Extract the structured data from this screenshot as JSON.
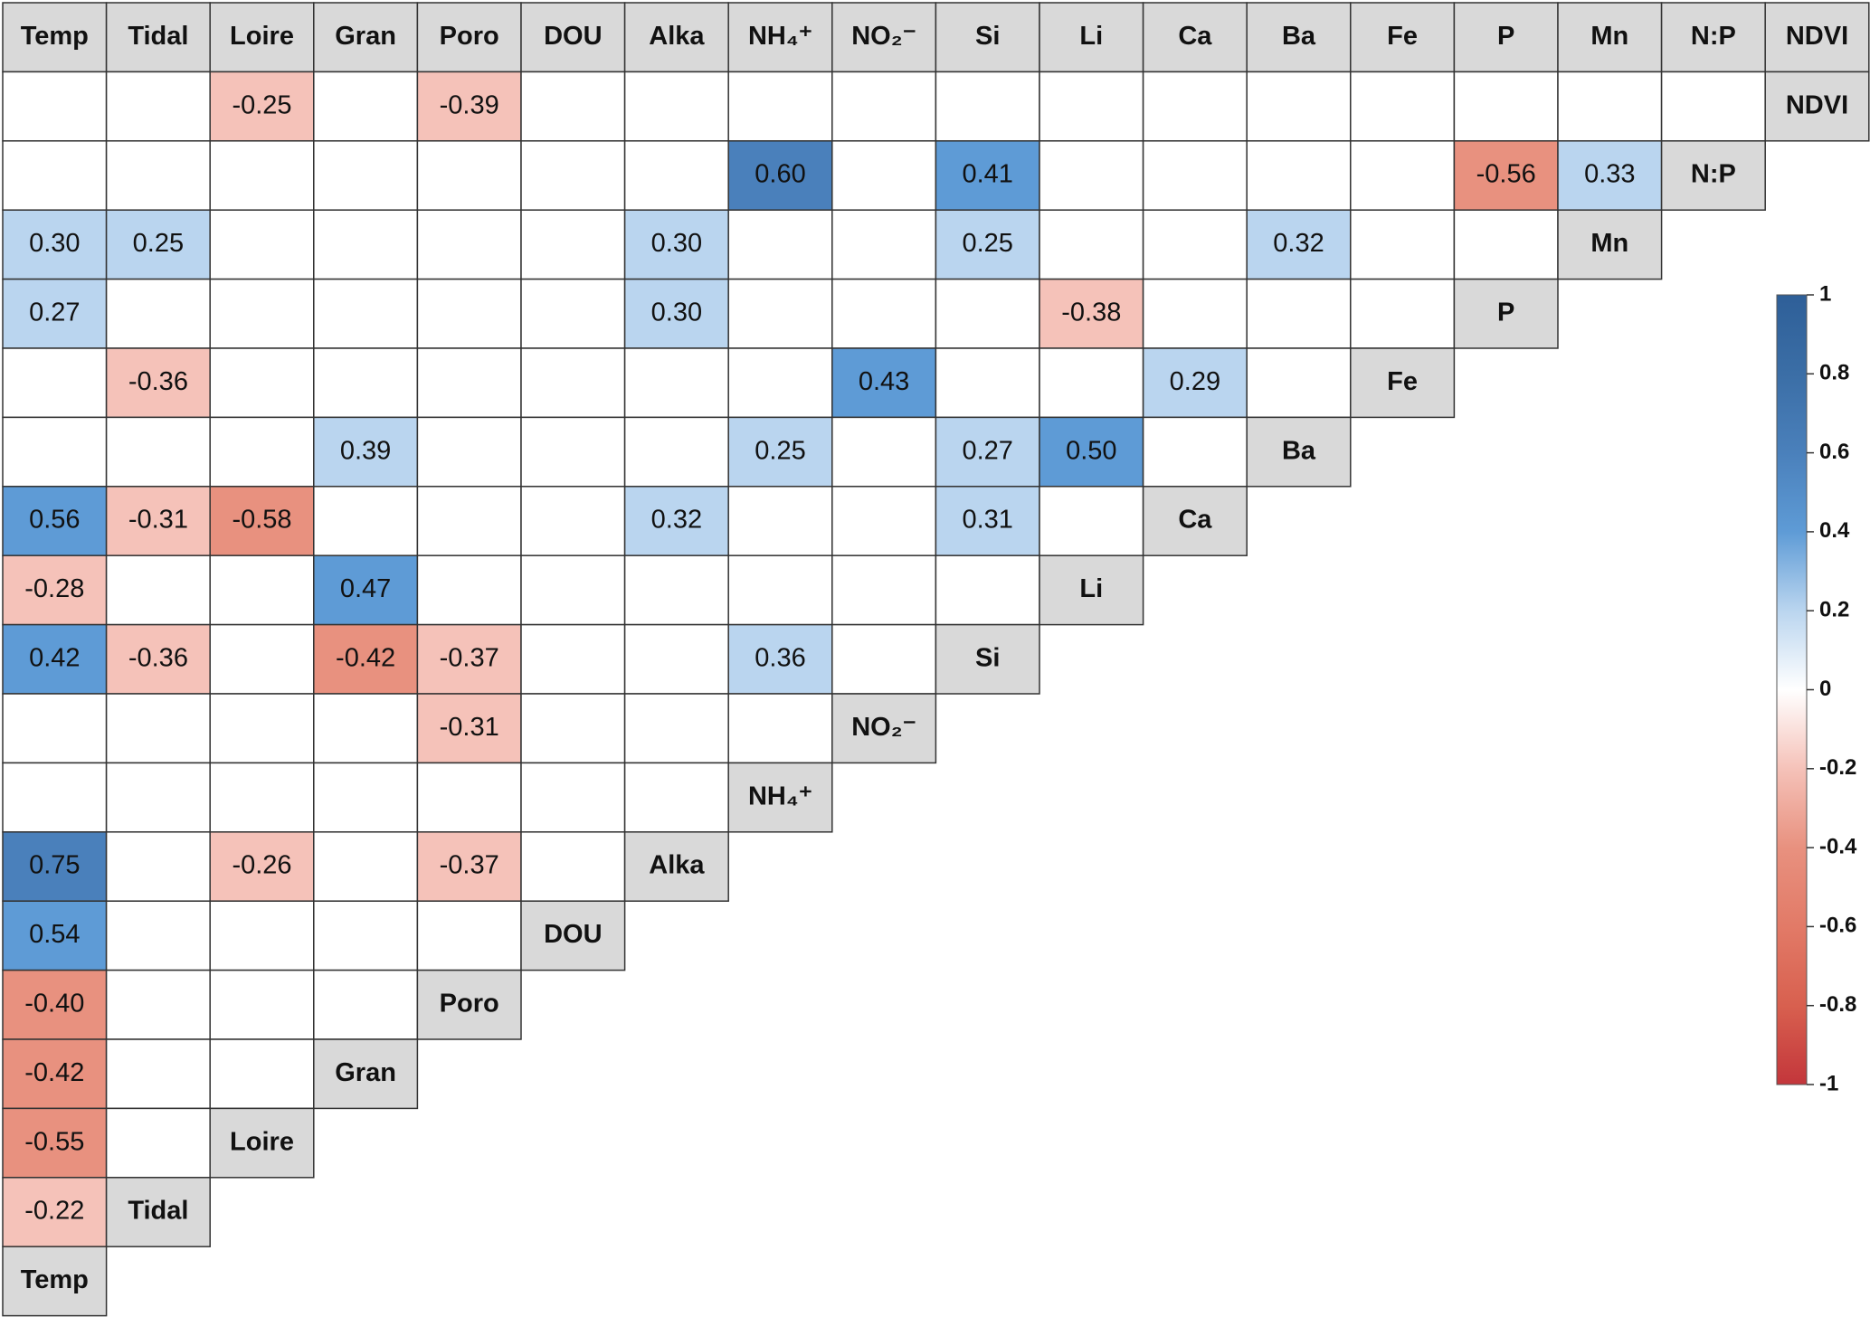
{
  "chart_data": {
    "type": "heatmap",
    "columns": [
      "Temp",
      "Tidal",
      "Loire",
      "Gran",
      "Poro",
      "DOU",
      "Alka",
      "NH₄⁺",
      "NO₂⁻",
      "Si",
      "Li",
      "Ca",
      "Ba",
      "Fe",
      "P",
      "Mn",
      "N:P",
      "NDVI"
    ],
    "rows": [
      "NDVI",
      "N:P",
      "Mn",
      "P",
      "Fe",
      "Ba",
      "Ca",
      "Li",
      "Si",
      "NO₂⁻",
      "NH₄⁺",
      "Alka",
      "DOU",
      "Poro",
      "Gran",
      "Loire",
      "Tidal",
      "Temp"
    ],
    "values": [
      [
        null,
        null,
        -0.25,
        null,
        -0.39,
        null,
        null,
        null,
        null,
        null,
        null,
        null,
        null,
        null,
        null,
        null,
        null
      ],
      [
        null,
        null,
        null,
        null,
        null,
        null,
        null,
        0.6,
        null,
        0.41,
        null,
        null,
        null,
        null,
        -0.56,
        0.33
      ],
      [
        0.3,
        0.25,
        null,
        null,
        null,
        null,
        0.3,
        null,
        null,
        0.25,
        null,
        null,
        0.32,
        null,
        null
      ],
      [
        0.27,
        null,
        null,
        null,
        null,
        null,
        0.3,
        null,
        null,
        null,
        -0.38,
        null,
        null,
        null
      ],
      [
        null,
        -0.36,
        null,
        null,
        null,
        null,
        null,
        null,
        0.43,
        null,
        null,
        0.29,
        null
      ],
      [
        null,
        null,
        null,
        0.39,
        null,
        null,
        null,
        0.25,
        null,
        0.27,
        0.5,
        null
      ],
      [
        0.56,
        -0.31,
        -0.58,
        null,
        null,
        null,
        0.32,
        null,
        null,
        0.31,
        null
      ],
      [
        -0.28,
        null,
        null,
        0.47,
        null,
        null,
        null,
        null,
        null,
        null
      ],
      [
        0.42,
        -0.36,
        null,
        -0.42,
        -0.37,
        null,
        null,
        0.36,
        null
      ],
      [
        null,
        null,
        null,
        null,
        -0.31,
        null,
        null,
        null
      ],
      [
        null,
        null,
        null,
        null,
        null,
        null,
        null
      ],
      [
        0.75,
        null,
        -0.26,
        null,
        -0.37,
        null
      ],
      [
        0.54,
        null,
        null,
        null,
        null
      ],
      [
        -0.4,
        null,
        null,
        null
      ],
      [
        -0.42,
        null,
        null
      ],
      [
        -0.55,
        null
      ],
      [
        -0.22
      ],
      []
    ],
    "value_labels": [
      [
        null,
        null,
        "-0.25",
        null,
        "-0.39",
        null,
        null,
        null,
        null,
        null,
        null,
        null,
        null,
        null,
        null,
        null,
        null
      ],
      [
        null,
        null,
        null,
        null,
        null,
        null,
        null,
        "0.60",
        null,
        "0.41",
        null,
        null,
        null,
        null,
        "-0.56",
        "0.33"
      ],
      [
        "0.30",
        "0.25",
        null,
        null,
        null,
        null,
        "0.30",
        null,
        null,
        "0.25",
        null,
        null,
        "0.32",
        null,
        null
      ],
      [
        "0.27",
        null,
        null,
        null,
        null,
        null,
        "0.30",
        null,
        null,
        null,
        "-0.38",
        null,
        null,
        null
      ],
      [
        null,
        "-0.36",
        null,
        null,
        null,
        null,
        null,
        null,
        "0.43",
        null,
        null,
        "0.29",
        null
      ],
      [
        null,
        null,
        null,
        "0.39",
        null,
        null,
        null,
        "0.25",
        null,
        "0.27",
        "0.50",
        null
      ],
      [
        "0.56",
        "-0.31",
        "-0.58",
        null,
        null,
        null,
        "0.32",
        null,
        null,
        "0.31",
        null
      ],
      [
        "-0.28",
        null,
        null,
        "0.47",
        null,
        null,
        null,
        null,
        null,
        null
      ],
      [
        "0.42",
        "-0.36",
        null,
        "-0.42",
        "-0.37",
        null,
        null,
        "0.36",
        null
      ],
      [
        null,
        null,
        null,
        null,
        "-0.31",
        null,
        null,
        null
      ],
      [
        null,
        null,
        null,
        null,
        null,
        null,
        null
      ],
      [
        "0.75",
        null,
        "-0.26",
        null,
        "-0.37",
        null
      ],
      [
        "0.54",
        null,
        null,
        null,
        null
      ],
      [
        "-0.40",
        null,
        null,
        null
      ],
      [
        "-0.42",
        null,
        null
      ],
      [
        "-0.55",
        null
      ],
      [
        "-0.22"
      ],
      []
    ],
    "zlim": [
      -1,
      1
    ],
    "zticks": [
      1,
      0.8,
      0.6,
      0.4,
      0.2,
      0,
      -0.2,
      -0.4,
      -0.6,
      -0.8,
      -1
    ],
    "colorscale": [
      {
        "value": -1,
        "color": "#c3363b"
      },
      {
        "value": -0.8,
        "color": "#d8604f"
      },
      {
        "value": -0.6,
        "color": "#e27a67"
      },
      {
        "value": -0.4,
        "color": "#e8917f"
      },
      {
        "value": -0.2,
        "color": "#f5c2b9"
      },
      {
        "value": 0,
        "color": "#ffffff"
      },
      {
        "value": 0.2,
        "color": "#bad5ef"
      },
      {
        "value": 0.4,
        "color": "#5e9bd6"
      },
      {
        "value": 0.6,
        "color": "#4a80bb"
      },
      {
        "value": 0.8,
        "color": "#3b6ea6"
      },
      {
        "value": 1,
        "color": "#2e5f98"
      }
    ]
  }
}
